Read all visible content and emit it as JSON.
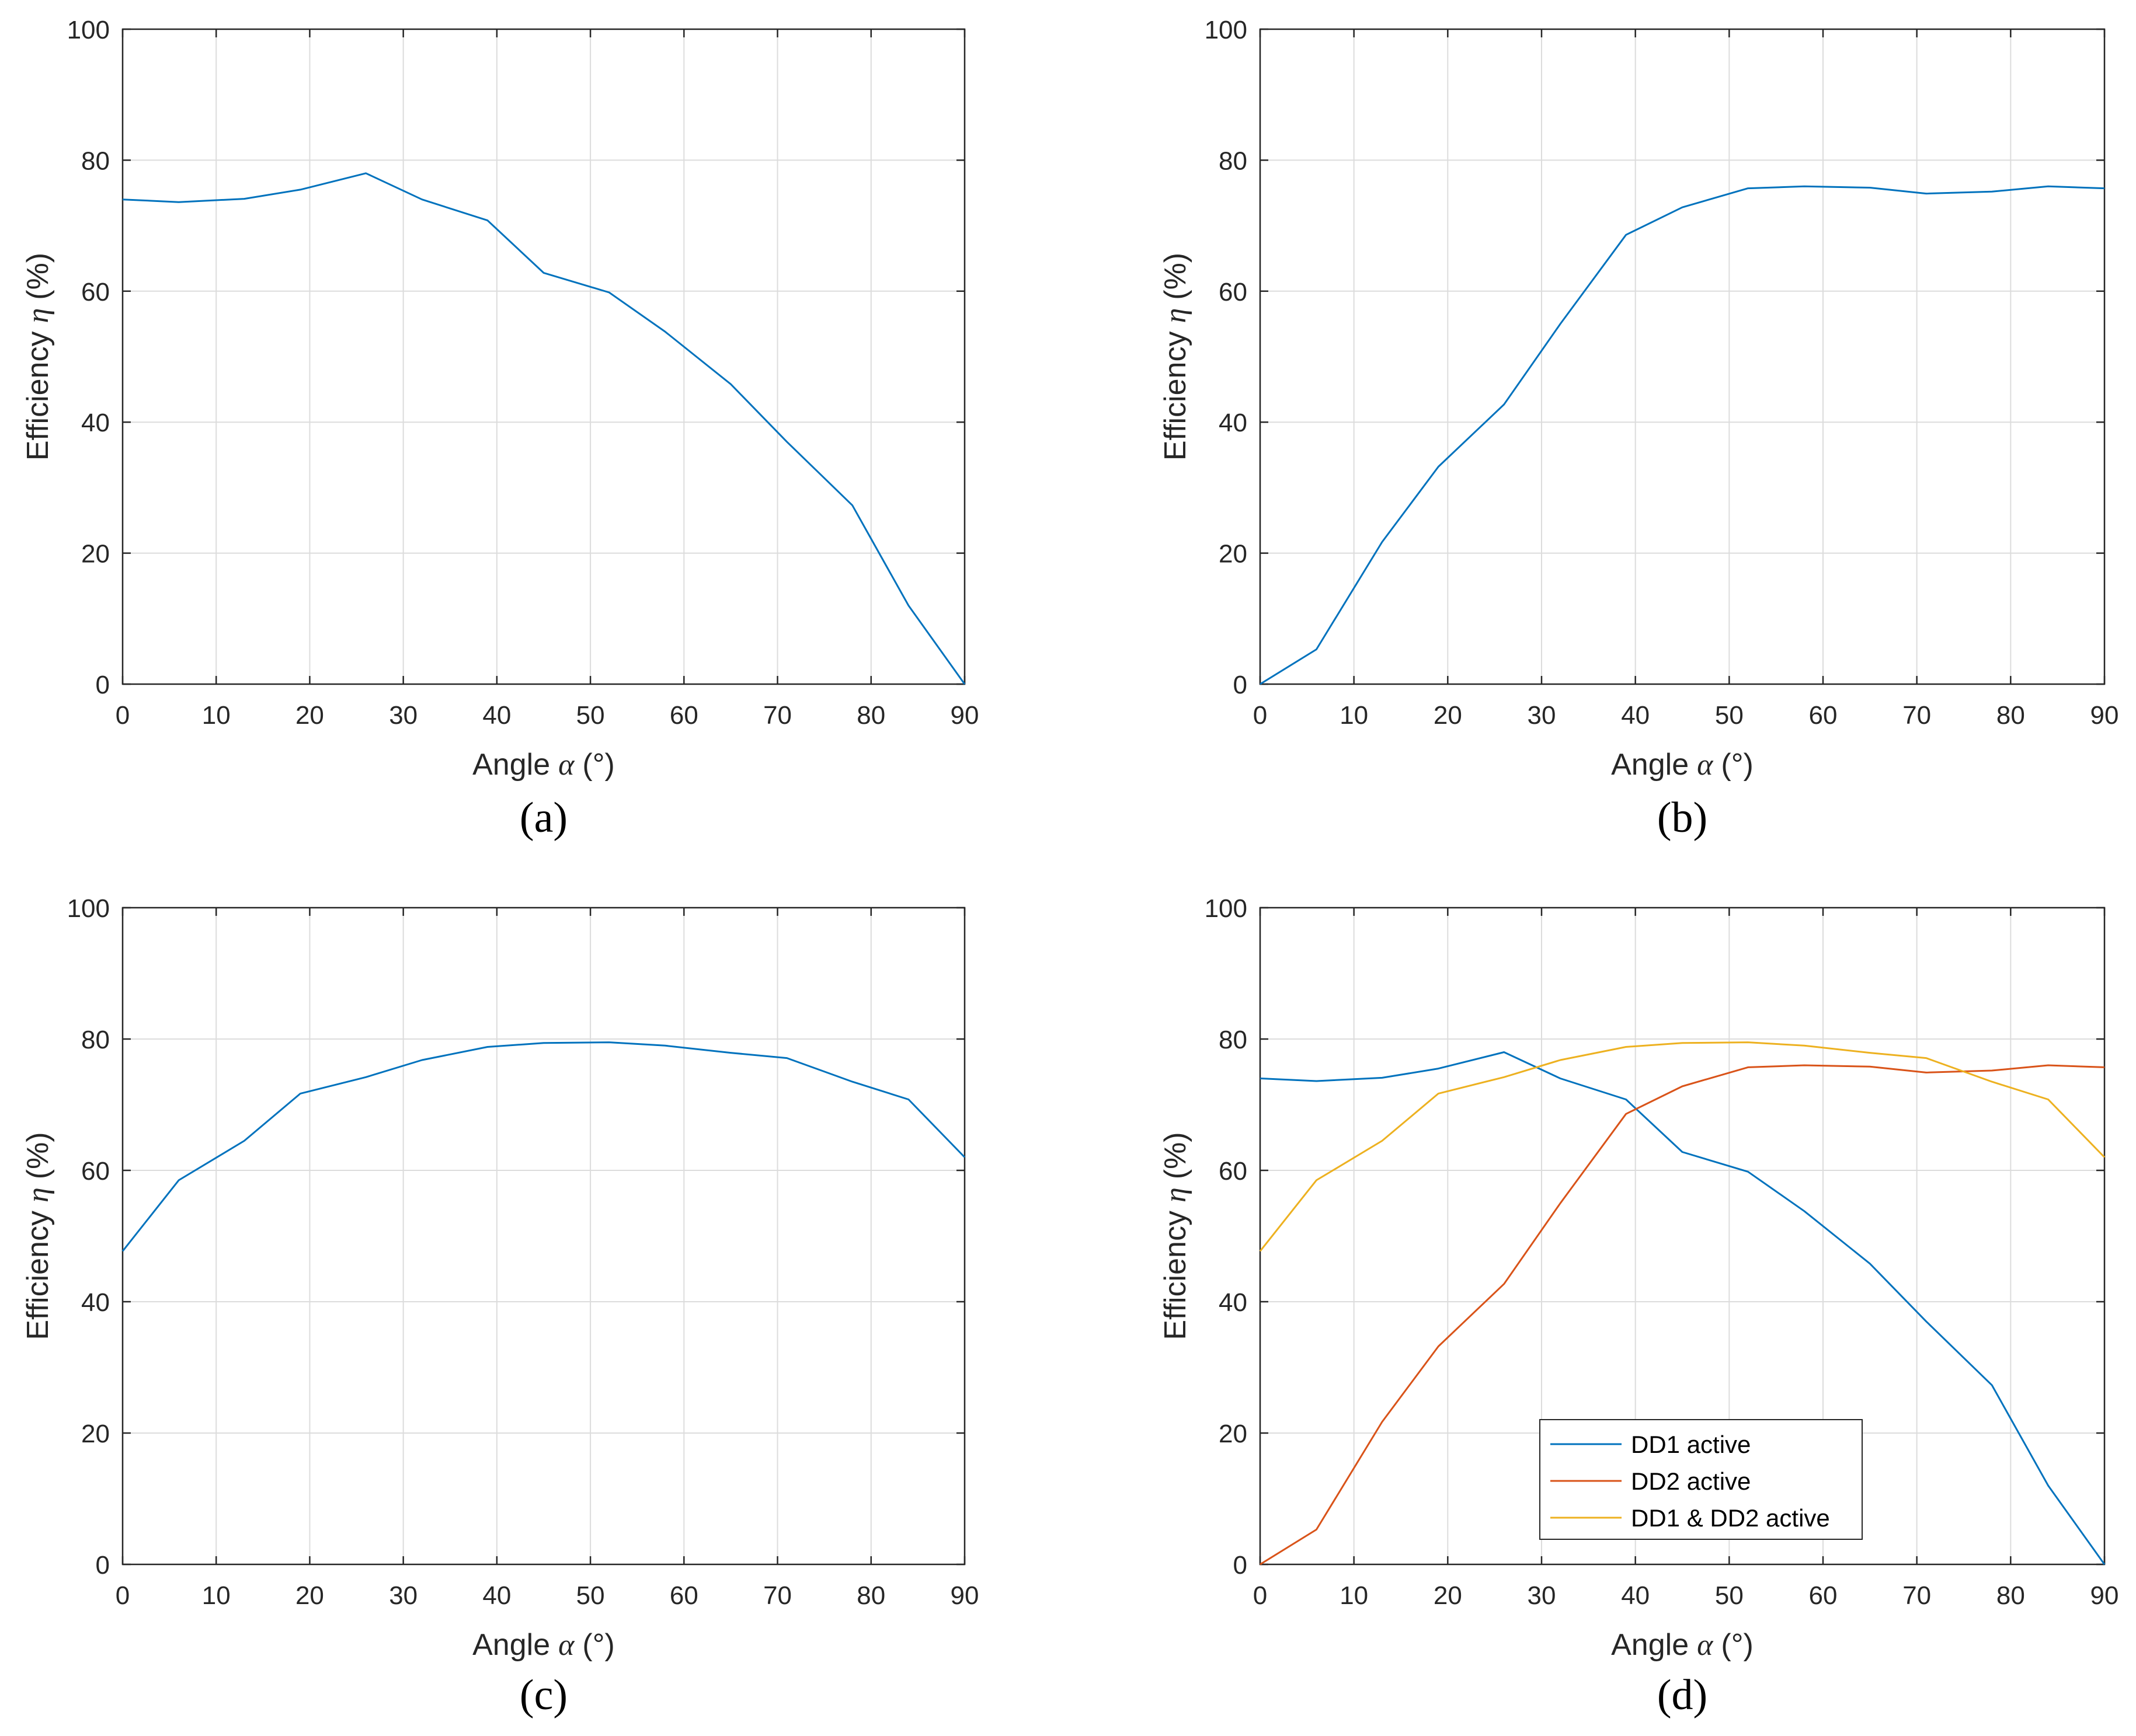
{
  "colors": {
    "series1": "#0072BD",
    "series2": "#D95319",
    "series3": "#EDB120",
    "grid": "#dcdcdc",
    "axis": "#262626"
  },
  "chart_data": [
    {
      "type": "line",
      "panel_label": "(a)",
      "xlabel_text": "Angle",
      "xlabel_symbol": "α",
      "xlabel_unit": "(°)",
      "ylabel_text": "Efficiency",
      "ylabel_symbol": "η",
      "ylabel_unit": "(%)",
      "xlim": [
        0,
        90
      ],
      "ylim": [
        0,
        100
      ],
      "xticks": [
        0,
        10,
        20,
        30,
        40,
        50,
        60,
        70,
        80,
        90
      ],
      "yticks": [
        0,
        20,
        40,
        60,
        80,
        100
      ],
      "grid": true,
      "series": [
        {
          "name": "DD1 active",
          "color_key": "series1",
          "x": [
            0,
            6,
            13,
            19,
            26,
            32,
            39,
            45,
            52,
            58,
            65,
            71,
            78,
            84,
            90
          ],
          "y": [
            74,
            73.6,
            74.1,
            75.5,
            78,
            74,
            70.8,
            62.8,
            59.8,
            53.8,
            45.8,
            37,
            27.3,
            12,
            0
          ]
        }
      ]
    },
    {
      "type": "line",
      "panel_label": "(b)",
      "xlabel_text": "Angle",
      "xlabel_symbol": "α",
      "xlabel_unit": "(°)",
      "ylabel_text": "Efficiency",
      "ylabel_symbol": "η",
      "ylabel_unit": "(%)",
      "xlim": [
        0,
        90
      ],
      "ylim": [
        0,
        100
      ],
      "xticks": [
        0,
        10,
        20,
        30,
        40,
        50,
        60,
        70,
        80,
        90
      ],
      "yticks": [
        0,
        20,
        40,
        60,
        80,
        100
      ],
      "grid": true,
      "series": [
        {
          "name": "DD2 active",
          "color_key": "series1",
          "x": [
            0,
            6,
            13,
            19,
            26,
            32,
            39,
            45,
            52,
            58,
            65,
            71,
            78,
            84,
            90
          ],
          "y": [
            0,
            5.3,
            21.7,
            33.2,
            42.7,
            55,
            68.6,
            72.8,
            75.7,
            76,
            75.8,
            74.9,
            75.2,
            76,
            75.7
          ]
        }
      ]
    },
    {
      "type": "line",
      "panel_label": "(c)",
      "xlabel_text": "Angle",
      "xlabel_symbol": "α",
      "xlabel_unit": "(°)",
      "ylabel_text": "Efficiency",
      "ylabel_symbol": "η",
      "ylabel_unit": "(%)",
      "xlim": [
        0,
        90
      ],
      "ylim": [
        0,
        100
      ],
      "xticks": [
        0,
        10,
        20,
        30,
        40,
        50,
        60,
        70,
        80,
        90
      ],
      "yticks": [
        0,
        20,
        40,
        60,
        80,
        100
      ],
      "grid": true,
      "series": [
        {
          "name": "DD1 & DD2 active",
          "color_key": "series1",
          "x": [
            0,
            6,
            13,
            19,
            26,
            32,
            39,
            45,
            52,
            58,
            65,
            71,
            78,
            84,
            90
          ],
          "y": [
            47.7,
            58.5,
            64.5,
            71.7,
            74.2,
            76.8,
            78.8,
            79.4,
            79.5,
            79,
            77.9,
            77.1,
            73.5,
            70.8,
            62
          ]
        }
      ]
    },
    {
      "type": "line",
      "panel_label": "(d)",
      "xlabel_text": "Angle",
      "xlabel_symbol": "α",
      "xlabel_unit": "(°)",
      "ylabel_text": "Efficiency",
      "ylabel_symbol": "η",
      "ylabel_unit": "(%)",
      "xlim": [
        0,
        90
      ],
      "ylim": [
        0,
        100
      ],
      "xticks": [
        0,
        10,
        20,
        30,
        40,
        50,
        60,
        70,
        80,
        90
      ],
      "yticks": [
        0,
        20,
        40,
        60,
        80,
        100
      ],
      "grid": true,
      "legend_position": "bottom-center",
      "series": [
        {
          "name": "DD1 active",
          "color_key": "series1",
          "x": [
            0,
            6,
            13,
            19,
            26,
            32,
            39,
            45,
            52,
            58,
            65,
            71,
            78,
            84,
            90
          ],
          "y": [
            74,
            73.6,
            74.1,
            75.5,
            78,
            74,
            70.8,
            62.8,
            59.8,
            53.8,
            45.8,
            37,
            27.3,
            12,
            0
          ]
        },
        {
          "name": "DD2 active",
          "color_key": "series2",
          "x": [
            0,
            6,
            13,
            19,
            26,
            32,
            39,
            45,
            52,
            58,
            65,
            71,
            78,
            84,
            90
          ],
          "y": [
            0,
            5.3,
            21.7,
            33.2,
            42.7,
            55,
            68.6,
            72.8,
            75.7,
            76,
            75.8,
            74.9,
            75.2,
            76,
            75.7
          ]
        },
        {
          "name": "DD1 & DD2 active",
          "color_key": "series3",
          "x": [
            0,
            6,
            13,
            19,
            26,
            32,
            39,
            45,
            52,
            58,
            65,
            71,
            78,
            84,
            90
          ],
          "y": [
            47.7,
            58.5,
            64.5,
            71.7,
            74.2,
            76.8,
            78.8,
            79.4,
            79.5,
            79,
            77.9,
            77.1,
            73.5,
            70.8,
            62
          ]
        }
      ]
    }
  ]
}
